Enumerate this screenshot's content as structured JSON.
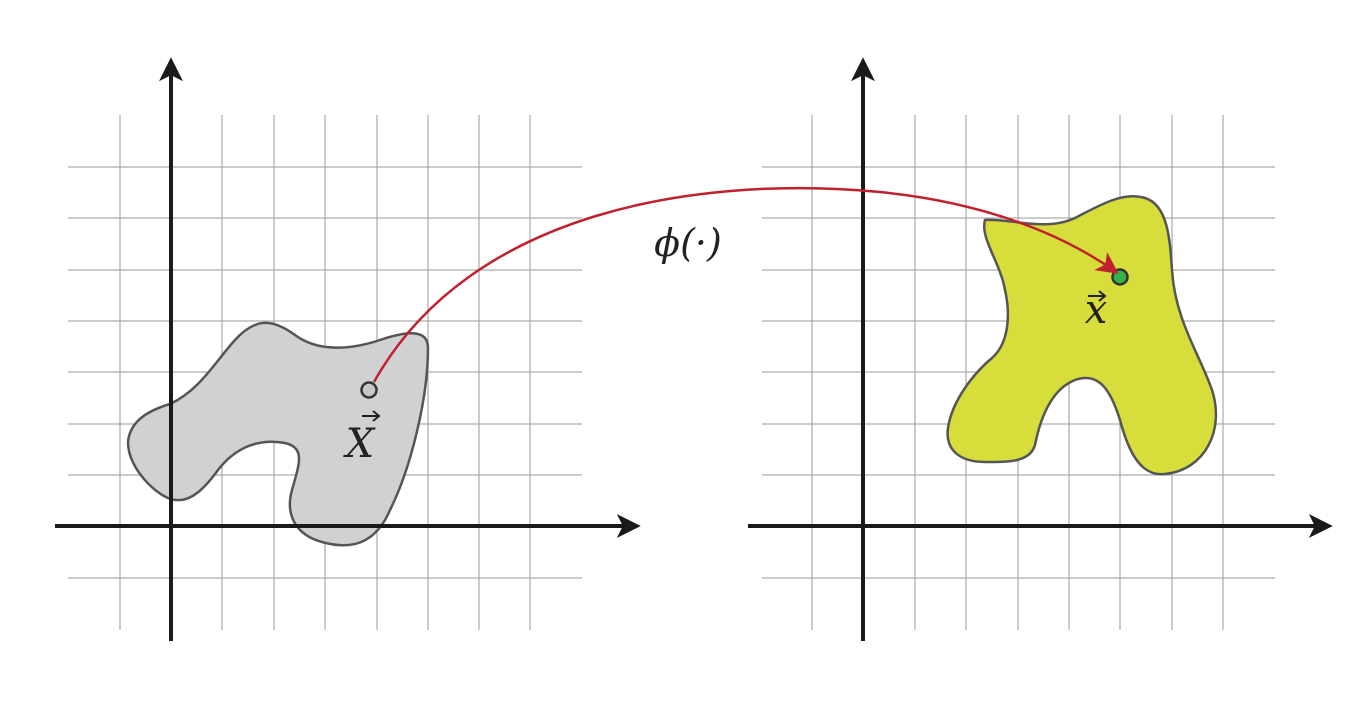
{
  "labels": {
    "reference_point": "X",
    "current_point": "x",
    "mapping": "ϕ(·)"
  },
  "colors": {
    "grid": "#9a9a9a",
    "axes": "#1a1a1a",
    "reference_shape_fill": "#d0d1d3",
    "current_shape_fill": "#d7dd3a",
    "shape_outline": "#555555",
    "mapping_arrow": "#c0212e",
    "reference_point_fill": "#c7c7c9",
    "current_point_fill": "#35b24a"
  },
  "icons": {
    "vector_accent": "right-arrow-over-letter"
  }
}
